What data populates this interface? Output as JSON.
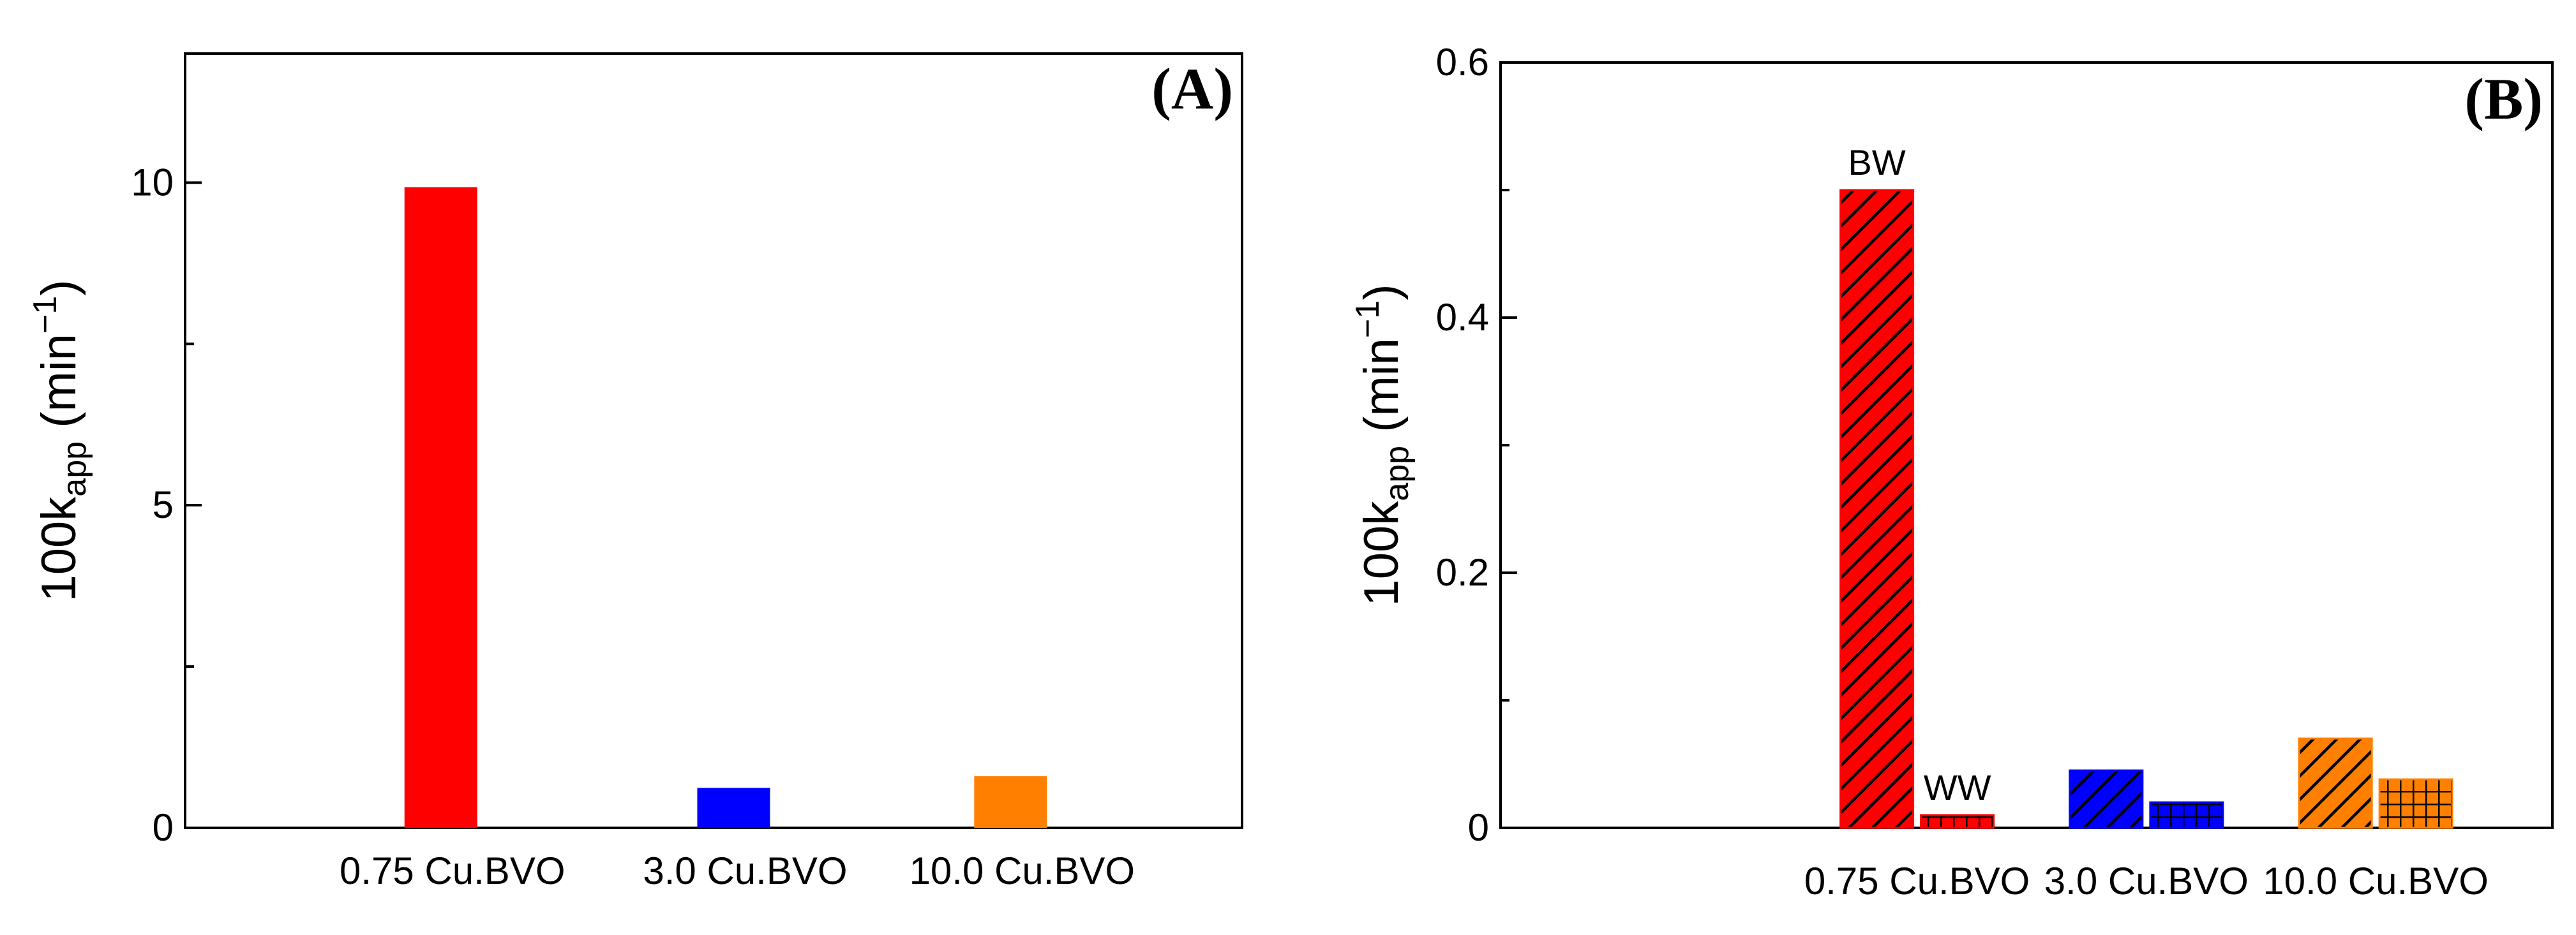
{
  "chart_data": [
    {
      "panel": "A",
      "type": "bar",
      "panel_label": "(A)",
      "ylabel_main": "100k",
      "ylabel_sub": "app",
      "ylabel_unit_open": " (min",
      "ylabel_unit_exp": "−1",
      "ylabel_unit_close": ")",
      "ylim": [
        0,
        12
      ],
      "yticks": [
        0,
        5,
        10
      ],
      "yminor": [
        2.5,
        7.5
      ],
      "categories": [
        "0.75 Cu.BVO",
        "3.0 Cu.BVO",
        "10.0 Cu.BVO"
      ],
      "values": [
        9.93,
        0.62,
        0.8
      ],
      "colors": [
        "#ff0000",
        "#0000ff",
        "#ff8000"
      ]
    },
    {
      "panel": "B",
      "type": "bar",
      "panel_label": "(B)",
      "ylabel_main": "100k",
      "ylabel_sub": "app",
      "ylabel_unit_open": " (min",
      "ylabel_unit_exp": "−1",
      "ylabel_unit_close": ")",
      "ylim": [
        0,
        0.6
      ],
      "yticks": [
        0,
        0.2,
        0.4,
        0.6
      ],
      "ytick_labels": [
        "0",
        "0.2",
        "0.4",
        "0.6"
      ],
      "yminor": [
        0.1,
        0.3,
        0.5
      ],
      "categories": [
        "0.75 Cu.BVO",
        "3.0 Cu.BVO",
        "10.0 Cu.BVO"
      ],
      "colors": [
        "#ff0000",
        "#0000ff",
        "#ff8000"
      ],
      "series": [
        {
          "name": "BW",
          "pattern": "hatch",
          "values": [
            0.5,
            0.045,
            0.07
          ]
        },
        {
          "name": "WW",
          "pattern": "grid",
          "values": [
            0.01,
            0.02,
            0.038
          ]
        }
      ],
      "annotations": [
        "BW",
        "WW"
      ]
    }
  ]
}
